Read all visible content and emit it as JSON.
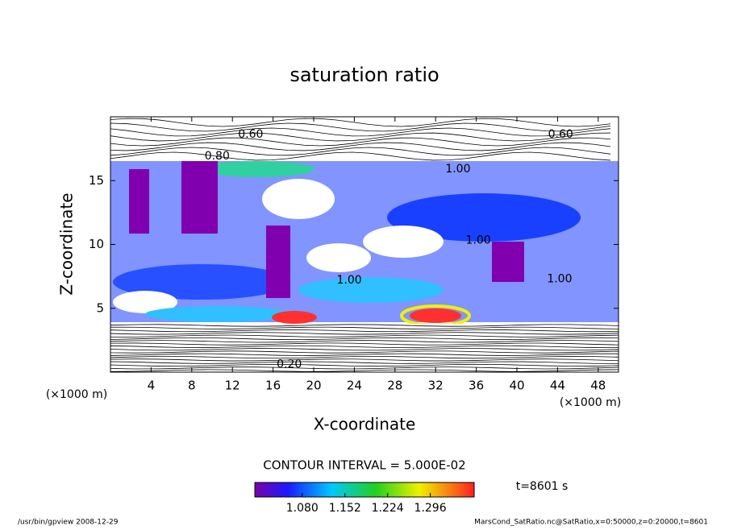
{
  "chart_data": {
    "type": "contour",
    "title": "saturation ratio",
    "x_label": "X-coordinate",
    "y_label": "Z-coordinate",
    "x_unit": "(×1000 m)",
    "y_unit": "(×1000 m)",
    "xlim": [
      0,
      50
    ],
    "ylim": [
      0,
      20
    ],
    "xticks": [
      4,
      8,
      12,
      16,
      20,
      24,
      28,
      32,
      36,
      40,
      44,
      48
    ],
    "yticks": [
      5,
      10,
      15
    ],
    "contour_interval": "CONTOUR INTERVAL = 5.000E-02",
    "contour_labels": [
      {
        "text": "0.60",
        "x": 13.8,
        "y": 18.6
      },
      {
        "text": "0.60",
        "x": 44.3,
        "y": 18.6
      },
      {
        "text": "0.80",
        "x": 10.5,
        "y": 16.9
      },
      {
        "text": "1.00",
        "x": 34.2,
        "y": 15.9
      },
      {
        "text": "1.00",
        "x": 36.2,
        "y": 10.3
      },
      {
        "text": "1.00",
        "x": 23.5,
        "y": 7.2
      },
      {
        "text": "1.00",
        "x": 44.2,
        "y": 7.3
      },
      {
        "text": "0.20",
        "x": 17.6,
        "y": 0.6
      }
    ],
    "colorbar": {
      "lim": [
        1.0,
        1.37
      ],
      "ticks": [
        {
          "value": 1.08,
          "label": "1.080"
        },
        {
          "value": 1.152,
          "label": "1.152"
        },
        {
          "value": 1.224,
          "label": "1.224"
        },
        {
          "value": 1.296,
          "label": "1.296"
        }
      ]
    },
    "time_label": "t=8601 s",
    "footer_left": "/usr/bin/gpview  2008-12-29",
    "footer_right": "MarsCond_SatRatio.nc@SatRatio,x=0:50000,z=0:20000,t=8601"
  }
}
